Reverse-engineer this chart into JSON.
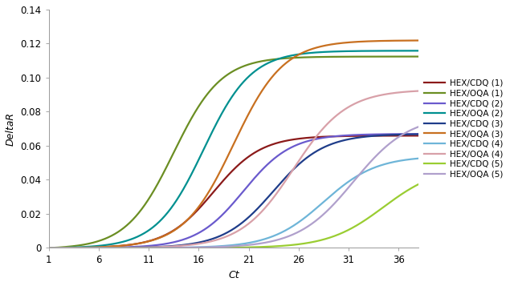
{
  "title": "",
  "xlabel": "Ct",
  "ylabel": "DeltaR",
  "xlim": [
    1,
    38
  ],
  "ylim": [
    0,
    0.14
  ],
  "xticks": [
    1,
    6,
    11,
    16,
    21,
    26,
    31,
    36
  ],
  "yticks": [
    0,
    0.02,
    0.04,
    0.06,
    0.08,
    0.1,
    0.12,
    0.14
  ],
  "series": [
    {
      "label": "HEX/CDQ (1)",
      "color": "#8B1A1A",
      "plateau": 0.066,
      "midpoint": 17.5,
      "steepness": 0.42
    },
    {
      "label": "HEX/OQA (1)",
      "color": "#6B8E23",
      "plateau": 0.113,
      "midpoint": 13.5,
      "steepness": 0.42
    },
    {
      "label": "HEX/CDQ (2)",
      "color": "#6A5ACD",
      "plateau": 0.067,
      "midpoint": 20.5,
      "steepness": 0.42
    },
    {
      "label": "HEX/OQA (2)",
      "color": "#009090",
      "plateau": 0.116,
      "midpoint": 16.5,
      "steepness": 0.42
    },
    {
      "label": "HEX/CDQ (3)",
      "color": "#1F3D8A",
      "plateau": 0.067,
      "midpoint": 23.5,
      "steepness": 0.4
    },
    {
      "label": "HEX/OQA (3)",
      "color": "#C87020",
      "plateau": 0.122,
      "midpoint": 19.5,
      "steepness": 0.4
    },
    {
      "label": "HEX/CDQ (4)",
      "color": "#6EB5D8",
      "plateau": 0.054,
      "midpoint": 28.5,
      "steepness": 0.38
    },
    {
      "label": "HEX/OQA (4)",
      "color": "#D8A0A8",
      "plateau": 0.093,
      "midpoint": 25.5,
      "steepness": 0.38
    },
    {
      "label": "HEX/CDQ (5)",
      "color": "#9ACD32",
      "plateau": 0.048,
      "midpoint": 34.5,
      "steepness": 0.36
    },
    {
      "label": "HEX/OQA (5)",
      "color": "#B0A0CC",
      "plateau": 0.078,
      "midpoint": 31.5,
      "steepness": 0.36
    }
  ],
  "legend_fontsize": 7.5,
  "axis_fontsize": 9,
  "tick_fontsize": 8.5,
  "linewidth": 1.6,
  "figsize": [
    6.35,
    3.57
  ],
  "dpi": 100
}
